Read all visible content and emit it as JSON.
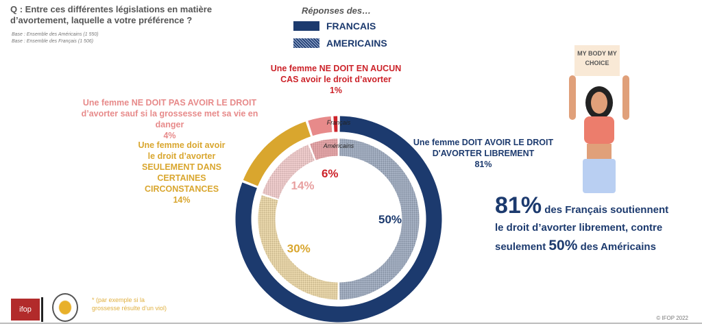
{
  "question": "Q : Entre ces différentes législations en matière d’avortement, laquelle a votre préférence ?",
  "bases": [
    "Base : Ensemble des Américains (1 550)",
    "Base : Ensemble des Français (1 506)"
  ],
  "legend": {
    "title": "Réponses des…",
    "items": [
      {
        "label": "FRANCAIS",
        "color": "#1c3a6e",
        "pattern": false
      },
      {
        "label": "AMERICAINS",
        "color": "#1c3a6e",
        "pattern": true
      }
    ]
  },
  "chart_data": {
    "type": "pie",
    "subtype": "double-donut",
    "categories": [
      "Une femme DOIT AVOIR LE DROIT D'AVORTER LIBREMENT",
      "Une femme doit avoir le droit d’avorter SEULEMENT DANS CERTAINES CIRCONSTANCES",
      "Une femme NE DOIT PAS AVOIR LE DROIT d’avorter sauf si la grossesse met sa vie en danger",
      "Une femme NE DOIT EN AUCUN CAS avoir le droit d’avorter"
    ],
    "colors": [
      "#1c3a6e",
      "#d9a62e",
      "#e78a8a",
      "#cc2229"
    ],
    "series": [
      {
        "name": "Français",
        "values": [
          81,
          14,
          4,
          1
        ],
        "labels": [
          "81%",
          "14%",
          "4%",
          "1%"
        ]
      },
      {
        "name": "Américains",
        "values": [
          50,
          30,
          14,
          6
        ],
        "labels": [
          "50%",
          "30%",
          "14%",
          "6%"
        ]
      }
    ]
  },
  "callout": {
    "pct1": "81%",
    "text1": " des Français soutiennent",
    "text2": "le droit d’avorter librement, contre",
    "text3a": "seulement ",
    "pct2": "50%",
    "text3b": " des Américains"
  },
  "illustration": {
    "sign": "MY BODY MY CHOICE"
  },
  "footnote": "* (par exemple si la grossesse résulte d’un viol)",
  "logos": [
    "ifop"
  ],
  "copyright": "© IFOP 2022"
}
